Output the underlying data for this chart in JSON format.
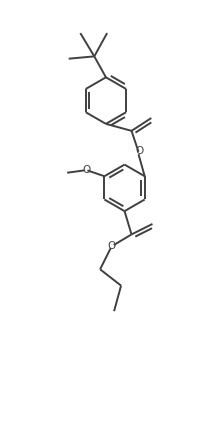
{
  "bg_color": "#ffffff",
  "line_color": "#404040",
  "line_width": 1.4,
  "dbo": 0.018,
  "figsize": [
    2.24,
    4.42
  ],
  "dpi": 100,
  "xlim": [
    -0.1,
    1.0
  ],
  "ylim": [
    -0.05,
    2.1
  ]
}
